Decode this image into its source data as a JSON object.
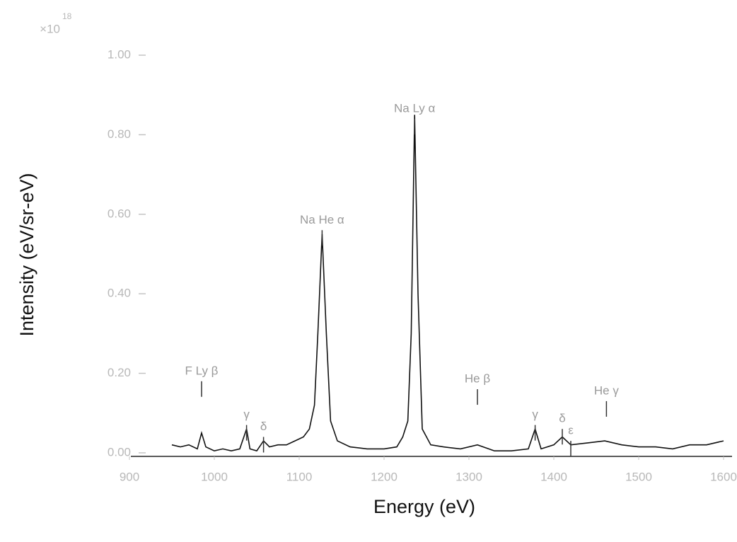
{
  "chart_data": {
    "type": "line",
    "y_label": "Intensity (eV/sr-eV)",
    "x_label": "Energy (eV)",
    "y_multiplier": "×10",
    "y_multiplier_exp": "18",
    "x": [
      950,
      960,
      970,
      980,
      985,
      990,
      1000,
      1010,
      1020,
      1030,
      1038,
      1042,
      1050,
      1058,
      1065,
      1075,
      1085,
      1095,
      1105,
      1112,
      1118,
      1122,
      1127,
      1132,
      1137,
      1145,
      1160,
      1180,
      1200,
      1215,
      1222,
      1228,
      1232,
      1236,
      1240,
      1245,
      1255,
      1270,
      1290,
      1310,
      1330,
      1350,
      1370,
      1378,
      1385,
      1400,
      1410,
      1420,
      1440,
      1460,
      1480,
      1500,
      1520,
      1540,
      1560,
      1580,
      1600
    ],
    "series": [
      {
        "color": "#111111",
        "values": [
          0.02,
          0.015,
          0.02,
          0.01,
          0.05,
          0.015,
          0.005,
          0.01,
          0.005,
          0.01,
          0.06,
          0.01,
          0.005,
          0.03,
          0.015,
          0.02,
          0.02,
          0.03,
          0.04,
          0.06,
          0.12,
          0.3,
          0.55,
          0.3,
          0.08,
          0.03,
          0.015,
          0.01,
          0.01,
          0.015,
          0.04,
          0.08,
          0.3,
          0.85,
          0.4,
          0.06,
          0.02,
          0.015,
          0.01,
          0.02,
          0.005,
          0.005,
          0.01,
          0.06,
          0.01,
          0.02,
          0.04,
          0.02,
          0.025,
          0.03,
          0.02,
          0.015,
          0.015,
          0.01,
          0.02,
          0.02,
          0.03
        ]
      }
    ],
    "xlim": [
      900,
      1610
    ],
    "ylim": [
      -0.01,
      1.0
    ],
    "xticks": [
      900,
      1000,
      1100,
      1200,
      1300,
      1400,
      1500,
      1600
    ],
    "yticks": [
      {
        "value": 0,
        "label": "0.00"
      },
      {
        "value": 0.2,
        "label": "0.20"
      },
      {
        "value": 0.4,
        "label": "0.40"
      },
      {
        "value": 0.6,
        "label": "0.60"
      },
      {
        "value": 0.8,
        "label": "0.80"
      },
      {
        "value": 1.0,
        "label": "1.00"
      }
    ],
    "grid": false,
    "annotations": [
      {
        "text": "F Ly β",
        "x": 985,
        "y": 0.18
      },
      {
        "text": "γ",
        "x": 1038,
        "y": 0.07
      },
      {
        "text": "δ",
        "x": 1058,
        "y": 0.04
      },
      {
        "text": "Na He α",
        "x": 1127,
        "y": 0.56
      },
      {
        "text": "Na Ly α",
        "x": 1236,
        "y": 0.84
      },
      {
        "text": "He β",
        "x": 1310,
        "y": 0.16
      },
      {
        "text": "γ",
        "x": 1378,
        "y": 0.07
      },
      {
        "text": "δ",
        "x": 1410,
        "y": 0.06
      },
      {
        "text": "ε",
        "x": 1420,
        "y": 0.03
      },
      {
        "text": "He γ",
        "x": 1462,
        "y": 0.13
      }
    ]
  }
}
